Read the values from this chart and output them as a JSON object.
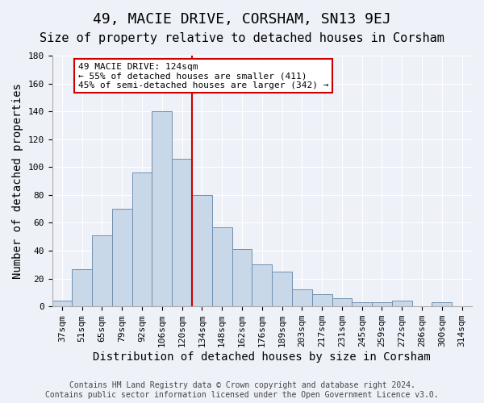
{
  "title": "49, MACIE DRIVE, CORSHAM, SN13 9EJ",
  "subtitle": "Size of property relative to detached houses in Corsham",
  "xlabel": "Distribution of detached houses by size in Corsham",
  "ylabel": "Number of detached properties",
  "categories": [
    "37sqm",
    "51sqm",
    "65sqm",
    "79sqm",
    "92sqm",
    "106sqm",
    "120sqm",
    "134sqm",
    "148sqm",
    "162sqm",
    "176sqm",
    "189sqm",
    "203sqm",
    "217sqm",
    "231sqm",
    "245sqm",
    "259sqm",
    "272sqm",
    "286sqm",
    "300sqm",
    "314sqm"
  ],
  "values": [
    4,
    27,
    51,
    70,
    96,
    140,
    106,
    80,
    57,
    41,
    30,
    25,
    12,
    9,
    6,
    3,
    3,
    4,
    0,
    3,
    0
  ],
  "bar_color": "#c8d8e8",
  "bar_edge_color": "#7090b0",
  "bar_width": 1.0,
  "vline_x": 6.5,
  "vline_color": "#cc0000",
  "annotation_text": "49 MACIE DRIVE: 124sqm\n← 55% of detached houses are smaller (411)\n45% of semi-detached houses are larger (342) →",
  "annotation_box_color": "#ffffff",
  "annotation_box_edge_color": "#cc0000",
  "ylim": [
    0,
    180
  ],
  "yticks": [
    0,
    20,
    40,
    60,
    80,
    100,
    120,
    140,
    160,
    180
  ],
  "footer_text": "Contains HM Land Registry data © Crown copyright and database right 2024.\nContains public sector information licensed under the Open Government Licence v3.0.",
  "background_color": "#eef2f8",
  "plot_bg_color": "#eef2f8",
  "title_fontsize": 13,
  "subtitle_fontsize": 11,
  "tick_fontsize": 8,
  "ylabel_fontsize": 10,
  "xlabel_fontsize": 10
}
